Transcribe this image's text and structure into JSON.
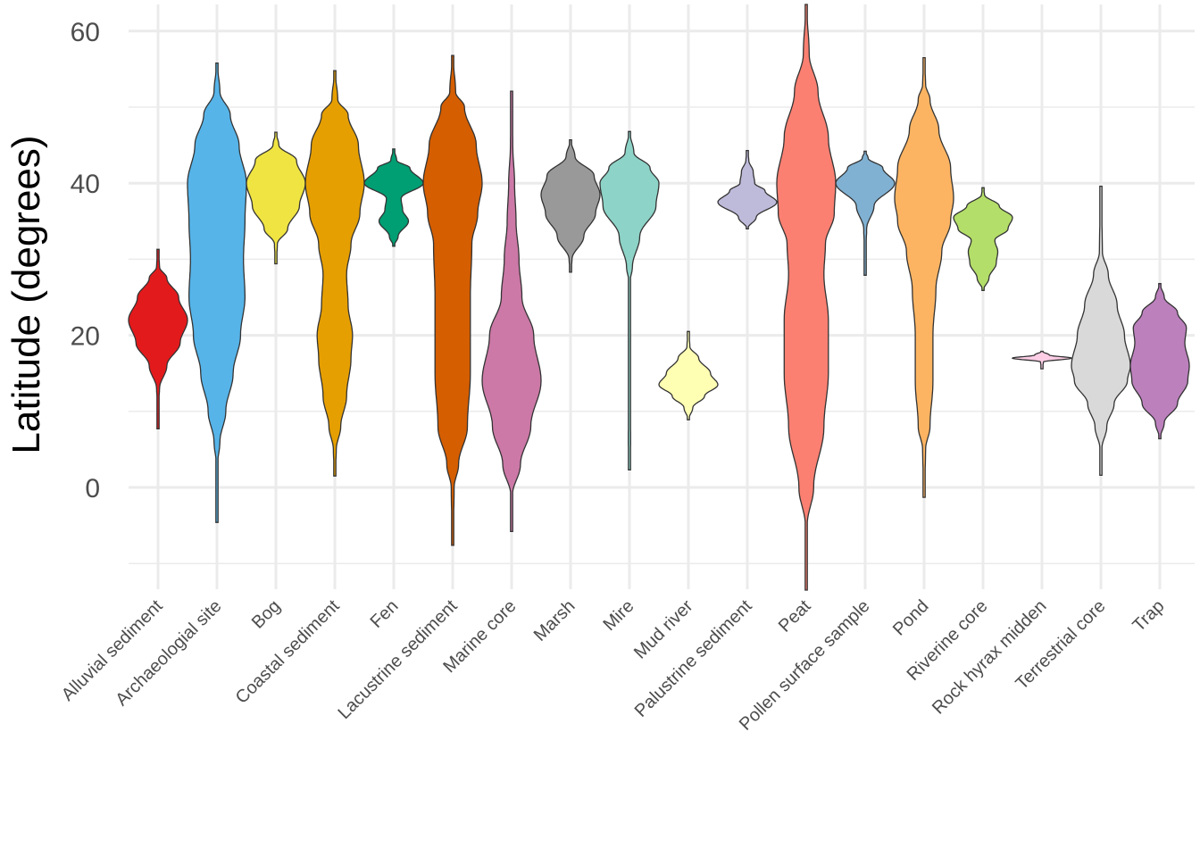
{
  "chart_data": {
    "type": "violin",
    "title": "",
    "xlabel": "",
    "ylabel": "Latitude (degrees)",
    "ylim": [
      -13.5,
      63.5
    ],
    "yticks": [
      0,
      20,
      40,
      60
    ],
    "yticks_minor": [
      -10,
      10,
      30,
      50
    ],
    "grid": true,
    "legend": "none",
    "categories": [
      "Alluvial sediment",
      "Archaeologial site",
      "Bog",
      "Coastal sediment",
      "Fen",
      "Lacustrine sediment",
      "Marine core",
      "Marsh",
      "Mire",
      "Mud river",
      "Palustrine sediment",
      "Peat",
      "Pollen surface sample",
      "Pond",
      "Riverine core",
      "Rock hyrax midden",
      "Terrestrial core",
      "Trap"
    ],
    "series": [
      {
        "name": "Alluvial sediment",
        "color": "#E31A1C",
        "range": [
          7.7,
          31.3
        ],
        "profile": [
          [
            7.7,
            0.01
          ],
          [
            11,
            0.02
          ],
          [
            13,
            0.05
          ],
          [
            16,
            0.3
          ],
          [
            19,
            0.75
          ],
          [
            22,
            1.0
          ],
          [
            25,
            0.7
          ],
          [
            27.5,
            0.3
          ],
          [
            29,
            0.05
          ],
          [
            31.3,
            0.01
          ]
        ]
      },
      {
        "name": "Archaeologial site",
        "color": "#56B4E9",
        "range": [
          -4.6,
          55.8
        ],
        "profile": [
          [
            -4.6,
            0.01
          ],
          [
            3,
            0.02
          ],
          [
            6,
            0.1
          ],
          [
            10,
            0.3
          ],
          [
            15,
            0.55
          ],
          [
            20,
            0.8
          ],
          [
            25,
            0.95
          ],
          [
            30,
            0.9
          ],
          [
            35,
            0.95
          ],
          [
            40,
            1.0
          ],
          [
            45,
            0.75
          ],
          [
            49,
            0.45
          ],
          [
            52,
            0.1
          ],
          [
            55.8,
            0.01
          ]
        ]
      },
      {
        "name": "Bog",
        "color": "#F0E442",
        "range": [
          29.4,
          46.7
        ],
        "profile": [
          [
            29.4,
            0.01
          ],
          [
            32,
            0.05
          ],
          [
            34,
            0.4
          ],
          [
            37,
            0.8
          ],
          [
            40,
            1.0
          ],
          [
            43,
            0.7
          ],
          [
            45,
            0.1
          ],
          [
            46.7,
            0.01
          ]
        ]
      },
      {
        "name": "Coastal sediment",
        "color": "#E69F00",
        "range": [
          1.5,
          54.8
        ],
        "profile": [
          [
            1.5,
            0.01
          ],
          [
            5,
            0.05
          ],
          [
            8,
            0.2
          ],
          [
            12,
            0.4
          ],
          [
            17,
            0.55
          ],
          [
            20,
            0.6
          ],
          [
            24,
            0.45
          ],
          [
            28,
            0.4
          ],
          [
            32,
            0.55
          ],
          [
            36,
            0.85
          ],
          [
            40,
            1.0
          ],
          [
            45,
            0.8
          ],
          [
            49,
            0.45
          ],
          [
            51,
            0.1
          ],
          [
            54.8,
            0.01
          ]
        ]
      },
      {
        "name": "Fen",
        "color": "#009E73",
        "range": [
          31.7,
          44.5
        ],
        "profile": [
          [
            31.7,
            0.01
          ],
          [
            33,
            0.15
          ],
          [
            35,
            0.5
          ],
          [
            36.5,
            0.3
          ],
          [
            38,
            0.25
          ],
          [
            40,
            1.0
          ],
          [
            42,
            0.55
          ],
          [
            43,
            0.1
          ],
          [
            44.5,
            0.01
          ]
        ]
      },
      {
        "name": "Lacustrine sediment",
        "color": "#D55E00",
        "range": [
          -7.6,
          56.8
        ],
        "profile": [
          [
            -7.6,
            0.01
          ],
          [
            0,
            0.05
          ],
          [
            3,
            0.2
          ],
          [
            8,
            0.5
          ],
          [
            15,
            0.6
          ],
          [
            25,
            0.6
          ],
          [
            32,
            0.65
          ],
          [
            36,
            0.85
          ],
          [
            40,
            1.0
          ],
          [
            45,
            0.8
          ],
          [
            50,
            0.4
          ],
          [
            52,
            0.1
          ],
          [
            56.8,
            0.01
          ]
        ]
      },
      {
        "name": "Marine core",
        "color": "#CC79A7",
        "range": [
          -5.8,
          52.1
        ],
        "profile": [
          [
            -5.8,
            0.01
          ],
          [
            -1,
            0.03
          ],
          [
            3,
            0.3
          ],
          [
            8,
            0.65
          ],
          [
            14,
            1.0
          ],
          [
            20,
            0.75
          ],
          [
            25,
            0.35
          ],
          [
            30,
            0.25
          ],
          [
            35,
            0.15
          ],
          [
            40,
            0.1
          ],
          [
            45,
            0.04
          ],
          [
            52.1,
            0.01
          ]
        ]
      },
      {
        "name": "Marsh",
        "color": "#999999",
        "range": [
          28.3,
          45.7
        ],
        "profile": [
          [
            28.3,
            0.01
          ],
          [
            30,
            0.05
          ],
          [
            33,
            0.45
          ],
          [
            36,
            0.85
          ],
          [
            38.5,
            1.0
          ],
          [
            41,
            0.8
          ],
          [
            43.5,
            0.15
          ],
          [
            45.7,
            0.01
          ]
        ]
      },
      {
        "name": "Mire",
        "color": "#8DD3C7",
        "range": [
          2.3,
          46.8
        ],
        "profile": [
          [
            2.3,
            0.01
          ],
          [
            6,
            0.04
          ],
          [
            10,
            0.03
          ],
          [
            14,
            0.02
          ],
          [
            27,
            0.02
          ],
          [
            29,
            0.1
          ],
          [
            33,
            0.35
          ],
          [
            37,
            0.9
          ],
          [
            40,
            1.0
          ],
          [
            42,
            0.7
          ],
          [
            44,
            0.15
          ],
          [
            46.8,
            0.01
          ]
        ]
      },
      {
        "name": "Mud river",
        "color": "#FFFFB3",
        "range": [
          8.9,
          20.5
        ],
        "profile": [
          [
            8.9,
            0.01
          ],
          [
            10.5,
            0.15
          ],
          [
            12,
            0.55
          ],
          [
            13.5,
            1.0
          ],
          [
            15,
            0.75
          ],
          [
            17,
            0.35
          ],
          [
            18.5,
            0.05
          ],
          [
            20.5,
            0.01
          ]
        ]
      },
      {
        "name": "Palustrine sediment",
        "color": "#BEBADA",
        "range": [
          34.0,
          44.3
        ],
        "profile": [
          [
            34.0,
            0.01
          ],
          [
            35.5,
            0.3
          ],
          [
            37.5,
            1.0
          ],
          [
            39,
            0.6
          ],
          [
            40,
            0.25
          ],
          [
            41.5,
            0.2
          ],
          [
            43,
            0.05
          ],
          [
            44.3,
            0.01
          ]
        ]
      },
      {
        "name": "Peat",
        "color": "#FB8072",
        "range": [
          -13.5,
          63.5
        ],
        "profile": [
          [
            -13.5,
            0.01
          ],
          [
            -5,
            0.03
          ],
          [
            0,
            0.25
          ],
          [
            8,
            0.6
          ],
          [
            15,
            0.75
          ],
          [
            22,
            0.75
          ],
          [
            28,
            0.6
          ],
          [
            32,
            0.65
          ],
          [
            36,
            0.95
          ],
          [
            40,
            1.0
          ],
          [
            46,
            0.75
          ],
          [
            52,
            0.4
          ],
          [
            57,
            0.1
          ],
          [
            63.5,
            0.01
          ]
        ]
      },
      {
        "name": "Pollen surface sample",
        "color": "#80B1D3",
        "range": [
          27.9,
          44.2
        ],
        "profile": [
          [
            27.9,
            0.01
          ],
          [
            31,
            0.02
          ],
          [
            34,
            0.05
          ],
          [
            37,
            0.3
          ],
          [
            40,
            1.0
          ],
          [
            42,
            0.6
          ],
          [
            43.3,
            0.1
          ],
          [
            44.2,
            0.01
          ]
        ]
      },
      {
        "name": "Pond",
        "color": "#FDB462",
        "range": [
          -1.3,
          56.5
        ],
        "profile": [
          [
            -1.3,
            0.01
          ],
          [
            5,
            0.05
          ],
          [
            8,
            0.2
          ],
          [
            14,
            0.3
          ],
          [
            20,
            0.3
          ],
          [
            26,
            0.4
          ],
          [
            31,
            0.6
          ],
          [
            35,
            0.9
          ],
          [
            38,
            1.0
          ],
          [
            42,
            0.9
          ],
          [
            47,
            0.5
          ],
          [
            51,
            0.2
          ],
          [
            53,
            0.05
          ],
          [
            56.5,
            0.01
          ]
        ]
      },
      {
        "name": "Riverine core",
        "color": "#B3DE69",
        "range": [
          25.9,
          39.4
        ],
        "profile": [
          [
            25.9,
            0.01
          ],
          [
            27.5,
            0.2
          ],
          [
            29.5,
            0.45
          ],
          [
            31,
            0.5
          ],
          [
            32.5,
            0.4
          ],
          [
            34,
            0.85
          ],
          [
            35.5,
            1.0
          ],
          [
            37,
            0.55
          ],
          [
            38.5,
            0.05
          ],
          [
            39.4,
            0.01
          ]
        ]
      },
      {
        "name": "Rock hyrax midden",
        "color": "#FCCDE5",
        "range": [
          15.6,
          17.9
        ],
        "profile": [
          [
            15.6,
            0.01
          ],
          [
            16.5,
            0.05
          ],
          [
            17.0,
            1.0
          ],
          [
            17.4,
            0.25
          ],
          [
            17.9,
            0.01
          ]
        ]
      },
      {
        "name": "Terrestrial core",
        "color": "#D9D9D9",
        "range": [
          1.6,
          39.6
        ],
        "profile": [
          [
            1.6,
            0.01
          ],
          [
            5,
            0.03
          ],
          [
            8,
            0.2
          ],
          [
            11,
            0.45
          ],
          [
            14,
            0.9
          ],
          [
            16,
            1.0
          ],
          [
            20,
            0.8
          ],
          [
            24,
            0.55
          ],
          [
            28,
            0.25
          ],
          [
            31,
            0.05
          ],
          [
            39.6,
            0.01
          ]
        ]
      },
      {
        "name": "Trap",
        "color": "#BC80BD",
        "range": [
          6.4,
          26.8
        ],
        "profile": [
          [
            6.4,
            0.01
          ],
          [
            8.5,
            0.15
          ],
          [
            11,
            0.6
          ],
          [
            14,
            0.95
          ],
          [
            16,
            1.0
          ],
          [
            19,
            0.85
          ],
          [
            21,
            0.9
          ],
          [
            23,
            0.6
          ],
          [
            25,
            0.15
          ],
          [
            26.8,
            0.01
          ]
        ]
      }
    ]
  }
}
